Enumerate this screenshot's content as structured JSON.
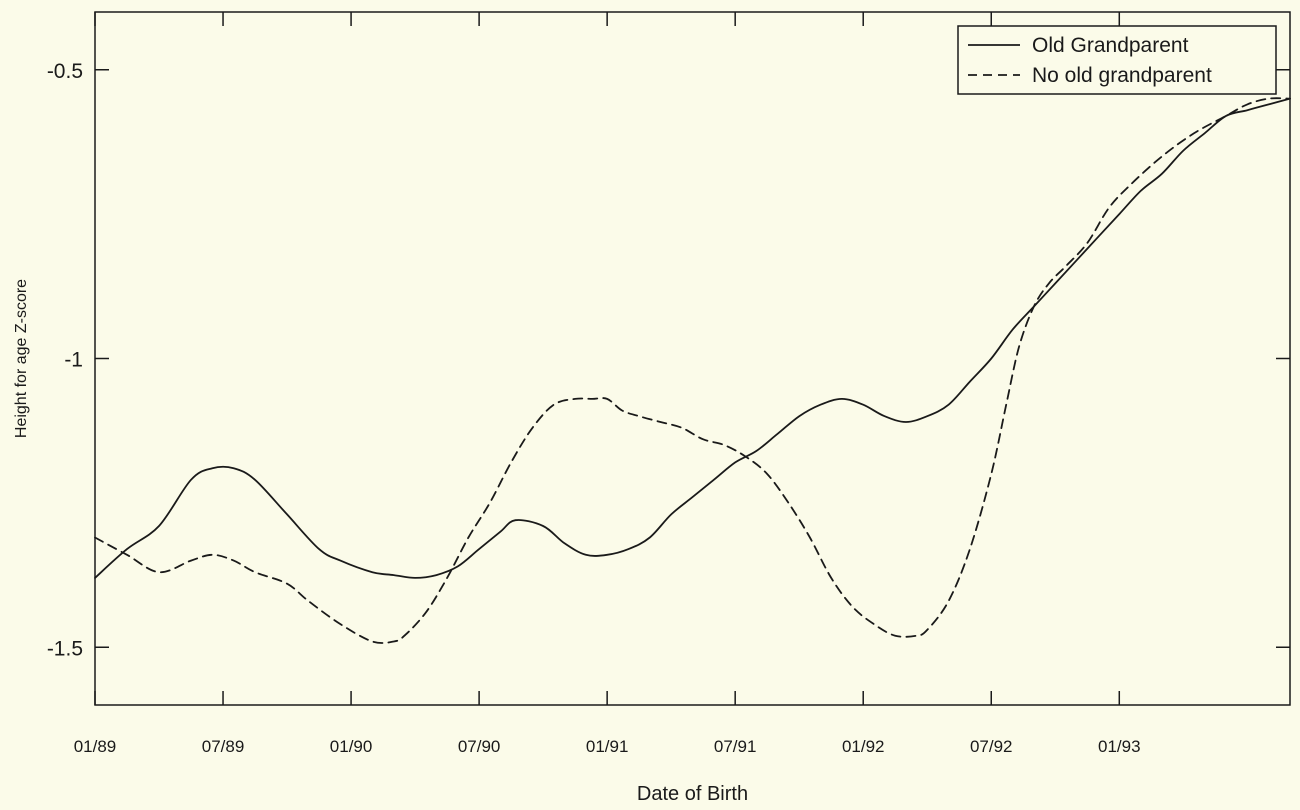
{
  "chart_data": {
    "type": "line",
    "title": "",
    "xlabel": "Date of Birth",
    "ylabel": "Height for age Z-score",
    "x_units": "months since 01/89",
    "xlim": [
      0,
      56
    ],
    "ylim": [
      -1.6,
      -0.4
    ],
    "x_ticks": [
      {
        "value": 0,
        "label": "01/89"
      },
      {
        "value": 6,
        "label": "07/89"
      },
      {
        "value": 12,
        "label": "01/90"
      },
      {
        "value": 18,
        "label": "07/90"
      },
      {
        "value": 24,
        "label": "01/91"
      },
      {
        "value": 30,
        "label": "07/91"
      },
      {
        "value": 36,
        "label": "01/92"
      },
      {
        "value": 42,
        "label": "07/92"
      },
      {
        "value": 48,
        "label": "01/93"
      }
    ],
    "y_ticks": [
      {
        "value": -0.5,
        "label": "-0.5"
      },
      {
        "value": -1.0,
        "label": "-1"
      },
      {
        "value": -1.5,
        "label": "-1.5"
      }
    ],
    "legend_position": "top-right",
    "grid": false,
    "series": [
      {
        "name": "Old Grandparent",
        "dash": "solid",
        "x": [
          0,
          1.5,
          3,
          4.5,
          5.5,
          6.5,
          7.5,
          9,
          10.5,
          11.5,
          13,
          14,
          15,
          16,
          17,
          18,
          19,
          19.7,
          21,
          22,
          23,
          24,
          25,
          26,
          27,
          28,
          29,
          30,
          31,
          32,
          33,
          34,
          35,
          36,
          37,
          38,
          39,
          40,
          41,
          42,
          43,
          44,
          45,
          46,
          47,
          48,
          49,
          50,
          51,
          52,
          53,
          54,
          55,
          56
        ],
        "y": [
          -1.38,
          -1.33,
          -1.29,
          -1.21,
          -1.19,
          -1.19,
          -1.21,
          -1.27,
          -1.33,
          -1.35,
          -1.37,
          -1.375,
          -1.38,
          -1.375,
          -1.36,
          -1.33,
          -1.3,
          -1.28,
          -1.29,
          -1.32,
          -1.34,
          -1.34,
          -1.33,
          -1.31,
          -1.27,
          -1.24,
          -1.21,
          -1.18,
          -1.16,
          -1.13,
          -1.1,
          -1.08,
          -1.07,
          -1.08,
          -1.1,
          -1.11,
          -1.1,
          -1.08,
          -1.04,
          -1.0,
          -0.95,
          -0.91,
          -0.87,
          -0.83,
          -0.79,
          -0.75,
          -0.71,
          -0.68,
          -0.64,
          -0.61,
          -0.58,
          -0.57,
          -0.56,
          -0.55
        ]
      },
      {
        "name": "No old grandparent",
        "dash": "dashed",
        "x": [
          0,
          1.5,
          3,
          4.5,
          5.5,
          6.5,
          7.5,
          9,
          10,
          11.5,
          13,
          14,
          14.5,
          15.5,
          16.5,
          17.5,
          18.5,
          19.5,
          20.5,
          21.5,
          22.5,
          23.3,
          24,
          24.7,
          25.5,
          26.5,
          27.5,
          28.5,
          29.5,
          30.5,
          31.5,
          32.5,
          33.5,
          34.5,
          35.5,
          36.5,
          37.5,
          38.5,
          39,
          40,
          41,
          42,
          42.7,
          43.3,
          44,
          44.7,
          45.5,
          46.5,
          47.5,
          48.5,
          50,
          51.5,
          53,
          54,
          55,
          56
        ],
        "y": [
          -1.31,
          -1.34,
          -1.37,
          -1.35,
          -1.34,
          -1.35,
          -1.37,
          -1.39,
          -1.42,
          -1.46,
          -1.49,
          -1.49,
          -1.48,
          -1.44,
          -1.38,
          -1.31,
          -1.25,
          -1.18,
          -1.12,
          -1.08,
          -1.07,
          -1.07,
          -1.07,
          -1.09,
          -1.1,
          -1.11,
          -1.12,
          -1.14,
          -1.15,
          -1.17,
          -1.2,
          -1.25,
          -1.31,
          -1.38,
          -1.43,
          -1.46,
          -1.48,
          -1.48,
          -1.47,
          -1.42,
          -1.33,
          -1.2,
          -1.08,
          -0.98,
          -0.91,
          -0.87,
          -0.84,
          -0.8,
          -0.74,
          -0.7,
          -0.65,
          -0.61,
          -0.58,
          -0.56,
          -0.55,
          -0.55
        ]
      }
    ]
  }
}
